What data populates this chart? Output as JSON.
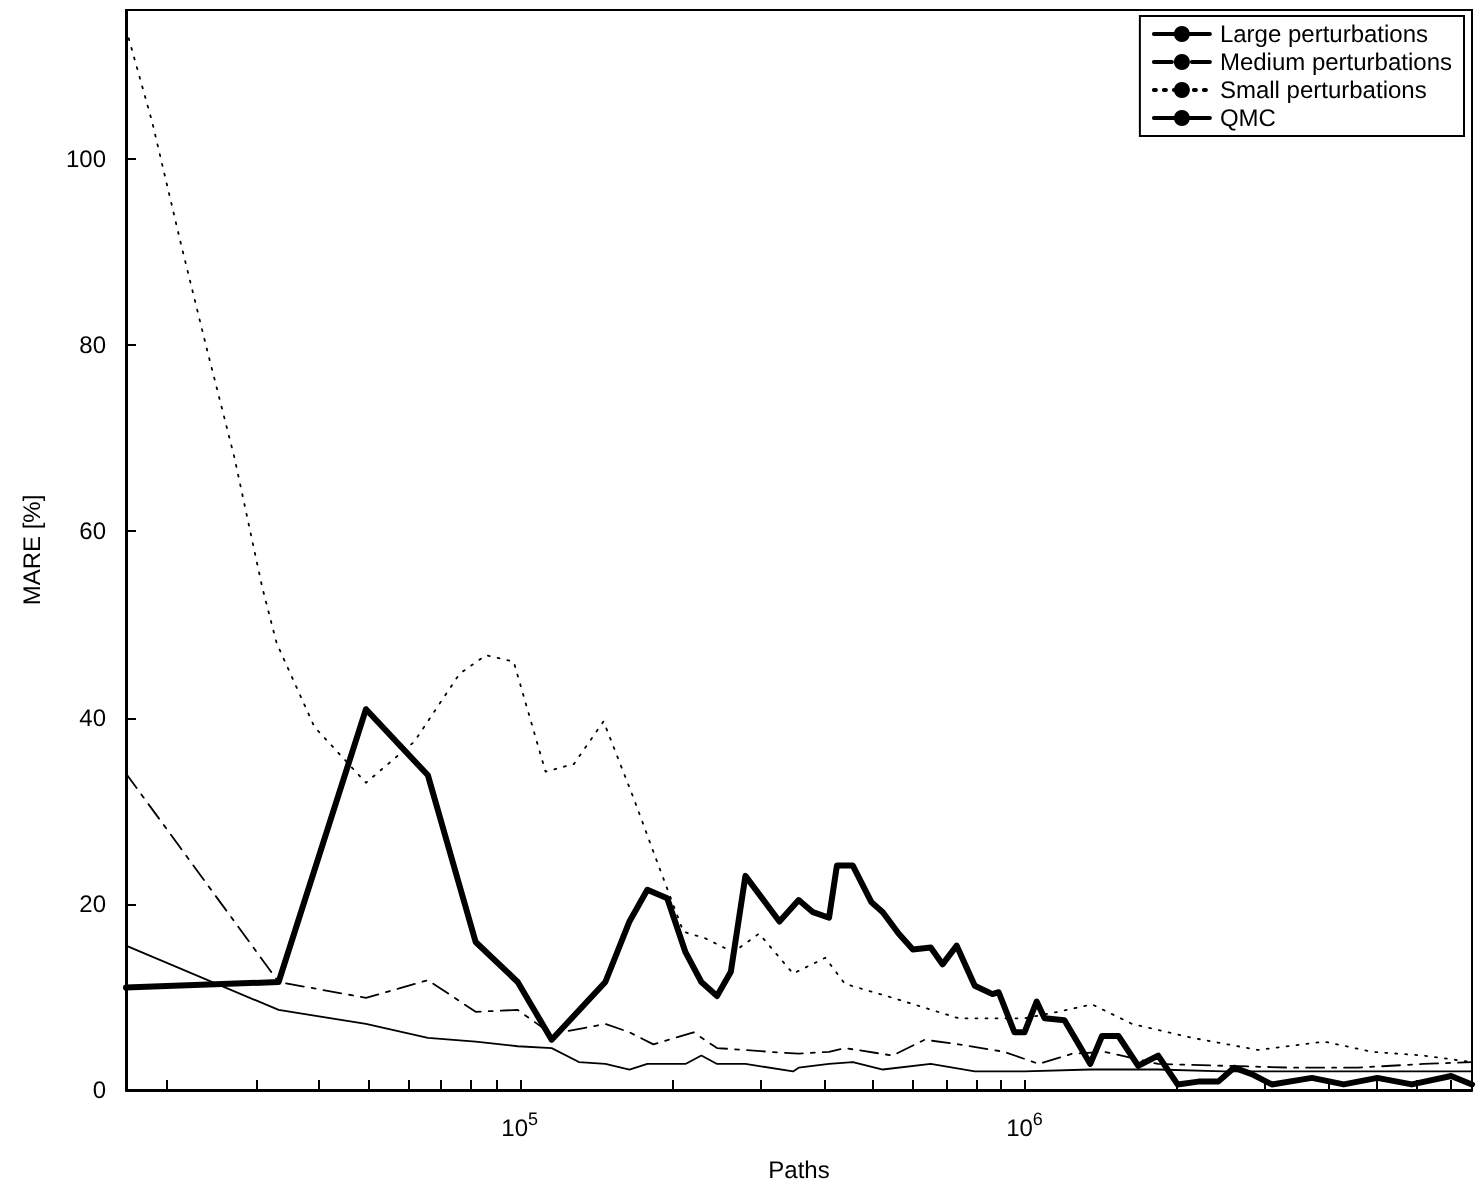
{
  "chart_data": {
    "type": "line",
    "xlabel": "Paths",
    "ylabel": "MARE [%]",
    "log": "x",
    "xlim": [
      16600,
      7700000
    ],
    "xticks": [
      {
        "value": 20000,
        "label": null
      },
      {
        "value": 30000,
        "label": null
      },
      {
        "value": 40000,
        "label": null
      },
      {
        "value": 50000,
        "label": null
      },
      {
        "value": 60000,
        "label": null
      },
      {
        "value": 70000,
        "label": null
      },
      {
        "value": 80000,
        "label": null
      },
      {
        "value": 90000,
        "label": null
      },
      {
        "value": 100000,
        "label": "10$^{5}$"
      },
      {
        "value": 200000,
        "label": null
      },
      {
        "value": 300000,
        "label": null
      },
      {
        "value": 400000,
        "label": null
      },
      {
        "value": 500000,
        "label": null
      },
      {
        "value": 600000,
        "label": null
      },
      {
        "value": 700000,
        "label": null
      },
      {
        "value": 800000,
        "label": null
      },
      {
        "value": 900000,
        "label": null
      },
      {
        "value": 1000000,
        "label": "10$^{6}$"
      },
      {
        "value": 2000000,
        "label": null
      },
      {
        "value": 3000000,
        "label": null
      },
      {
        "value": 4000000,
        "label": null
      },
      {
        "value": 5000000,
        "label": null
      },
      {
        "value": 6000000,
        "label": null
      },
      {
        "value": 7000000,
        "label": null
      }
    ],
    "ylim": [
      0,
      116
    ],
    "yticks": [
      0,
      20,
      40,
      60,
      80,
      100
    ],
    "grid": false,
    "legend": "top right",
    "marker": "none",
    "series": [
      {
        "name": "Large perturbations",
        "color": "#000000",
        "line_style": "solid",
        "x": [
          16600,
          33300,
          49600,
          65800,
          81800,
          99100,
          115700,
          131000,
          147800,
          165000,
          179000,
          213000,
          229000,
          246000,
          280000,
          348000,
          357000,
          410000,
          457000,
          524000,
          652000,
          797000,
          1000000,
          1350000,
          1840000,
          2480000,
          3710000,
          5000000,
          7700000
        ],
        "values": [
          15.5,
          8.6,
          7.1,
          5.6,
          5.2,
          4.7,
          4.5,
          3.0,
          2.8,
          2.2,
          2.8,
          2.8,
          3.7,
          2.8,
          2.8,
          2.0,
          2.4,
          2.8,
          3.0,
          2.2,
          2.8,
          2.0,
          2.0,
          2.2,
          2.2,
          2.0,
          2.0,
          2.0,
          2.0
        ]
      },
      {
        "name": "Medium perturbations",
        "color": "#000000",
        "line_style": "dashed",
        "x": [
          16600,
          33300,
          49600,
          65800,
          81800,
          99100,
          115700,
          147800,
          165000,
          184000,
          221000,
          246000,
          280000,
          312000,
          357000,
          410000,
          441000,
          548000,
          634000,
          741000,
          912000,
          1067000,
          1245000,
          1440000,
          1840000,
          2480000,
          3390000,
          4570000,
          6170000,
          7700000
        ],
        "values": [
          34,
          11.6,
          9.9,
          11.8,
          8.4,
          8.6,
          6.0,
          7.1,
          6.2,
          4.9,
          6.2,
          4.5,
          4.3,
          4.1,
          3.9,
          4.1,
          4.5,
          3.7,
          5.4,
          4.9,
          4.1,
          2.8,
          3.9,
          4.1,
          2.8,
          2.6,
          2.4,
          2.4,
          2.8,
          3.0
        ]
      },
      {
        "name": "Small perturbations",
        "color": "#000000",
        "line_style": "dotted",
        "x": [
          16600,
          18700,
          21300,
          23900,
          27200,
          30900,
          33000,
          39200,
          49600,
          61800,
          76000,
          85700,
          97300,
          112500,
          128000,
          146600,
          168000,
          186000,
          211000,
          233000,
          265000,
          298000,
          348000,
          403000,
          441000,
          548000,
          741000,
          1000000,
          1167000,
          1360000,
          1633000,
          2150000,
          2900000,
          3920000,
          4880000,
          6170000,
          7700000
        ],
        "values": [
          114,
          104,
          91,
          80,
          68,
          54,
          48,
          39,
          33,
          37.4,
          44.7,
          46.7,
          46,
          34.2,
          35,
          39.6,
          31.4,
          24.9,
          17,
          16.3,
          14.8,
          16.8,
          12.5,
          14.2,
          11.4,
          9.9,
          7.7,
          7.7,
          8.4,
          9.2,
          7.1,
          5.6,
          4.3,
          5.2,
          4.1,
          3.7,
          3.0
        ]
      },
      {
        "name": "QMC",
        "color": "#000000",
        "line_style": "solid",
        "x": [
          16600,
          33300,
          49600,
          65800,
          81800,
          99100,
          115700,
          147800,
          165000,
          179000,
          196000,
          213000,
          229000,
          246000,
          262000,
          280000,
          327000,
          357000,
          381000,
          410000,
          425000,
          457000,
          497000,
          524000,
          563000,
          601000,
          652000,
          688000,
          734000,
          797000,
          864000,
          889000,
          955000,
          1000000,
          1057000,
          1096000,
          1200000,
          1350000,
          1424000,
          1535000,
          1680000,
          1840000,
          2010000,
          2210000,
          2420000,
          2600000,
          2820000,
          3090000,
          3710000,
          4290000,
          5000000,
          5850000,
          7000000,
          7700000
        ],
        "values": [
          11,
          11.6,
          40.9,
          33.8,
          15.9,
          11.6,
          5.4,
          11.6,
          18.1,
          21.5,
          20.6,
          14.8,
          11.6,
          10.1,
          12.7,
          23,
          18.1,
          20.4,
          19.1,
          18.5,
          24.1,
          24.1,
          20.2,
          19.1,
          16.8,
          15.1,
          15.3,
          13.5,
          15.5,
          11.2,
          10.3,
          10.5,
          6.2,
          6.2,
          9.5,
          7.7,
          7.5,
          2.8,
          5.8,
          5.8,
          2.6,
          3.7,
          0.6,
          0.9,
          0.9,
          2.4,
          1.7,
          0.6,
          1.3,
          0.6,
          1.3,
          0.6,
          1.5,
          0.6
        ]
      }
    ]
  }
}
